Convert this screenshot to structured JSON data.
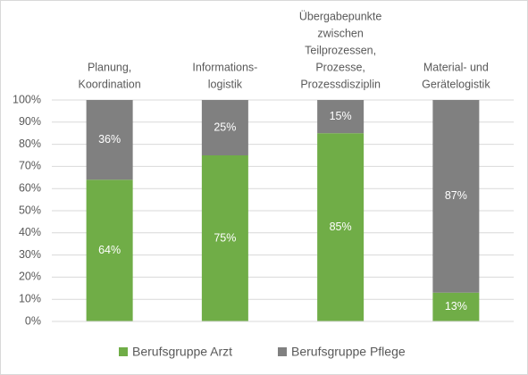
{
  "chart_data": {
    "type": "stacked_bar",
    "categories": [
      [
        "Planung,",
        "Koordination"
      ],
      [
        "Informations-",
        "logistik"
      ],
      [
        "Übergabepunkte",
        "zwischen",
        "Teilprozessen,",
        "Prozesse,",
        "Prozessdisziplin"
      ],
      [
        "Material- und",
        "Gerätelogistik"
      ]
    ],
    "series": [
      {
        "name": "Berufsgruppe Arzt",
        "color": "#70ad47",
        "values": [
          64,
          75,
          85,
          13
        ],
        "value_labels": [
          "64%",
          "75%",
          "85%",
          "13%"
        ]
      },
      {
        "name": "Berufsgruppe Pflege",
        "color": "#808080",
        "values": [
          36,
          25,
          15,
          87
        ],
        "value_labels": [
          "36%",
          "25%",
          "15%",
          "87%"
        ]
      }
    ],
    "ylim": [
      0,
      100
    ],
    "yticks": [
      {
        "value": 0,
        "label": "0%"
      },
      {
        "value": 10,
        "label": "10%"
      },
      {
        "value": 20,
        "label": "20%"
      },
      {
        "value": 30,
        "label": "30%"
      },
      {
        "value": 40,
        "label": "40%"
      },
      {
        "value": 50,
        "label": "50%"
      },
      {
        "value": 60,
        "label": "60%"
      },
      {
        "value": 70,
        "label": "70%"
      },
      {
        "value": 80,
        "label": "80%"
      },
      {
        "value": 90,
        "label": "90%"
      },
      {
        "value": 100,
        "label": "100%"
      }
    ],
    "grid": true,
    "legend": "bottom"
  }
}
